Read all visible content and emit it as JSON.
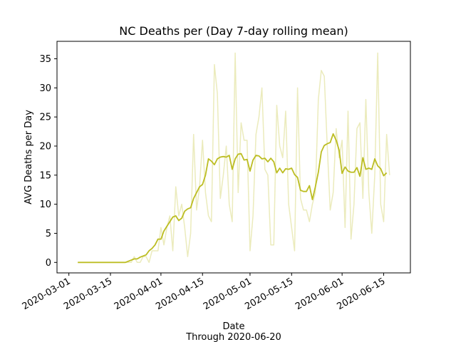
{
  "chart_data": {
    "type": "line",
    "title": "NC Deaths per (Day 7-day rolling mean)",
    "xlabel": "Date",
    "xlabel2": "Through 2020-06-20",
    "ylabel": "AVG Deaths per Day",
    "xlim": [
      "2020-02-26",
      "2020-06-24"
    ],
    "ylim": [
      -1.8,
      38
    ],
    "x_ticks": [
      "2020-03-01",
      "2020-03-15",
      "2020-04-01",
      "2020-04-15",
      "2020-05-01",
      "2020-05-15",
      "2020-06-01",
      "2020-06-15"
    ],
    "y_ticks": [
      0,
      5,
      10,
      15,
      20,
      25,
      30,
      35
    ],
    "grid": false,
    "colors": {
      "series": "#bcbd22"
    },
    "series": [
      {
        "start_date": "2020-03-04",
        "style": "faint",
        "values": [
          0,
          0,
          0,
          0,
          0,
          0,
          0,
          0,
          0,
          0,
          0,
          0,
          0,
          0,
          0,
          0,
          0,
          0,
          0,
          1,
          0,
          0,
          1,
          1,
          0,
          2,
          2,
          2,
          6,
          3,
          6,
          8,
          2,
          13,
          8,
          10,
          6,
          1,
          5,
          22,
          9,
          13,
          21,
          12,
          8,
          7,
          34,
          29,
          11,
          15,
          20,
          10,
          7,
          36,
          12,
          24,
          21,
          21,
          2,
          8,
          22,
          25,
          30,
          16,
          15,
          3,
          3,
          27,
          20,
          18,
          26,
          10,
          6,
          2,
          30,
          11,
          9,
          9,
          7,
          10,
          12,
          28,
          33,
          32,
          20,
          9,
          12,
          23,
          18,
          21,
          6,
          26,
          4,
          10,
          23,
          24,
          11,
          28,
          12,
          5,
          15,
          36,
          10,
          7,
          22,
          15
        ]
      },
      {
        "start_date": "2020-03-04",
        "style": "solid",
        "values": [
          0,
          0,
          0,
          0,
          0,
          0,
          0,
          0,
          0,
          0,
          0,
          0,
          0,
          0,
          0,
          0,
          0,
          0.2,
          0.4,
          0.6,
          0.6,
          0.9,
          1.1,
          1.3,
          2.0,
          2.4,
          3.0,
          4.0,
          4.0,
          5.4,
          6.2,
          7.0,
          7.8,
          8.0,
          7.2,
          7.6,
          8.8,
          9.2,
          9.4,
          11.0,
          12.0,
          13.0,
          13.4,
          15.0,
          17.8,
          17.4,
          16.8,
          17.8,
          18.1,
          18.2,
          18.1,
          18.4,
          16.0,
          17.8,
          18.6,
          18.7,
          17.6,
          17.7,
          15.7,
          17.6,
          18.4,
          18.3,
          17.8,
          17.9,
          17.3,
          17.9,
          17.3,
          15.4,
          16.2,
          15.4,
          16.1,
          16.0,
          16.2,
          15.1,
          14.6,
          12.4,
          12.2,
          12.2,
          13.2,
          10.8,
          13.0,
          15.5,
          19.0,
          20.1,
          20.4,
          20.6,
          22.1,
          21.0,
          19.3,
          15.3,
          16.4,
          15.7,
          15.5,
          15.5,
          16.3,
          14.8,
          18.0,
          16.0,
          16.2,
          16.0,
          17.8,
          16.6,
          16.1,
          14.9,
          15.4
        ]
      }
    ]
  }
}
